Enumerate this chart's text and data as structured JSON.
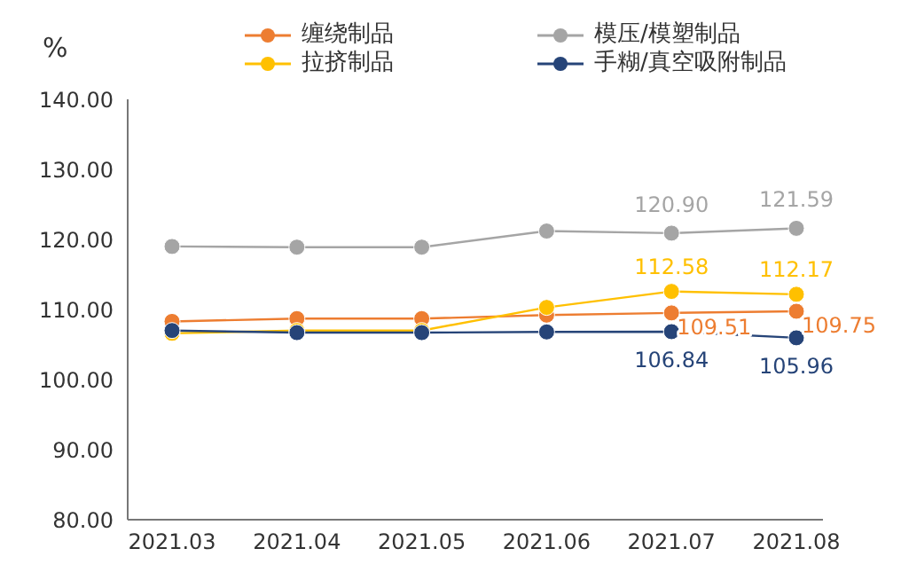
{
  "chart_data": {
    "type": "line",
    "ylabel": "%",
    "categories": [
      "2021.03",
      "2021.04",
      "2021.05",
      "2021.06",
      "2021.07",
      "2021.08"
    ],
    "series": [
      {
        "name": "缠绕制品",
        "color": "#ed7d31",
        "values": [
          108.3,
          108.7,
          108.7,
          109.2,
          109.51,
          109.75
        ],
        "value_labels": [
          null,
          null,
          null,
          null,
          "109.51",
          "109.75"
        ]
      },
      {
        "name": "模压/模塑制品",
        "color": "#a5a5a5",
        "values": [
          119.0,
          118.9,
          118.9,
          121.2,
          120.9,
          121.59
        ],
        "value_labels": [
          null,
          null,
          null,
          null,
          "120.90",
          "121.59"
        ]
      },
      {
        "name": "拉挤制品",
        "color": "#ffc000",
        "values": [
          106.6,
          107.0,
          107.0,
          110.3,
          112.58,
          112.17
        ],
        "value_labels": [
          null,
          null,
          null,
          null,
          "112.58",
          "112.17"
        ]
      },
      {
        "name": "手糊/真空吸附制品",
        "color": "#264478",
        "values": [
          107.0,
          106.7,
          106.7,
          106.8,
          106.84,
          105.96
        ],
        "value_labels": [
          null,
          null,
          null,
          null,
          "106.84",
          "105.96"
        ]
      }
    ],
    "ylim": [
      80,
      140
    ],
    "yticks": [
      {
        "value": 80,
        "label": "80.00"
      },
      {
        "value": 90,
        "label": "90.00"
      },
      {
        "value": 100,
        "label": "100.00"
      },
      {
        "value": 110,
        "label": "110.00"
      },
      {
        "value": 120,
        "label": "120.00"
      },
      {
        "value": 130,
        "label": "130.00"
      },
      {
        "value": 140,
        "label": "140.00"
      }
    ],
    "grid": false,
    "legend": "top",
    "marker": "circle",
    "line_style": "solid"
  }
}
